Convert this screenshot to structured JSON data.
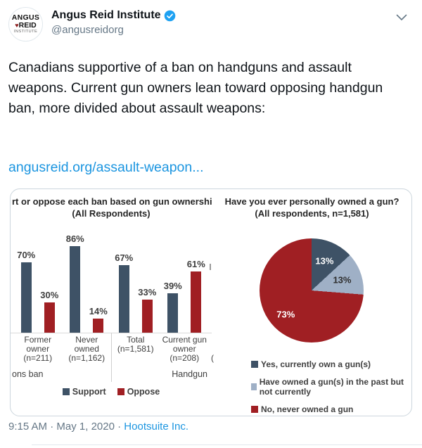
{
  "header": {
    "name": "Angus Reid Institute",
    "handle": "@angusreidorg",
    "avatar": {
      "line1": "ANGUS",
      "line2": "REID",
      "line3": "INSTITUTE"
    }
  },
  "tweet": {
    "text": "Canadians supportive of a ban on handguns and assault weapons. Current gun owners lean toward opposing handgun ban, more divided about assault weapons:",
    "link": "angusreid.org/assault-weapon..."
  },
  "chart_data": [
    {
      "type": "bar",
      "title": "rt or oppose each ban based on gun ownershi",
      "subtitle": "(All Respondents)",
      "categories": [
        "Former\nowner\n(n=211)",
        "Never owned\n(n=1,162)",
        "Total\n(n=1,581)",
        "Current gun\nowner\n(n=208)"
      ],
      "series": [
        {
          "name": "Support",
          "color": "#3e5266",
          "values": [
            70,
            86,
            67,
            39
          ]
        },
        {
          "name": "Oppose",
          "color": "#a01f23",
          "values": [
            30,
            14,
            33,
            61
          ]
        }
      ],
      "value_suffix": "%",
      "group_axis_labels": [
        "ons ban",
        "Handgun"
      ],
      "crop_fragment": "(",
      "ylim": [
        0,
        100
      ],
      "legend_position": "bottom"
    },
    {
      "type": "pie",
      "title": "Have you ever personally owned a gun?",
      "subtitle": "(All respondents, n=1,581)",
      "slices": [
        {
          "label": "Yes, currently own a gun(s)",
          "value": 13,
          "color": "#3e5266",
          "label_color": "#ffffff"
        },
        {
          "label": "Have owned a gun(s) in the past but not currently",
          "value": 13,
          "color": "#9fb0c6",
          "label_color": "#2e2e2e"
        },
        {
          "label": "No, never owned a gun",
          "value": 73,
          "color": "#a01f23",
          "label_color": "#ffffff"
        }
      ],
      "legend_position": "bottom"
    }
  ],
  "footer": {
    "time": "9:15 AM",
    "date": "May 1, 2020",
    "sep": "·",
    "source": "Hootsuite Inc."
  },
  "colors": {
    "link_blue": "#1b95e0",
    "verified_blue": "#1da1f2",
    "text_gray": "#657786",
    "bar_support": "#3e5266",
    "bar_oppose": "#a01f23",
    "pie_light_blue": "#9fb0c6"
  }
}
